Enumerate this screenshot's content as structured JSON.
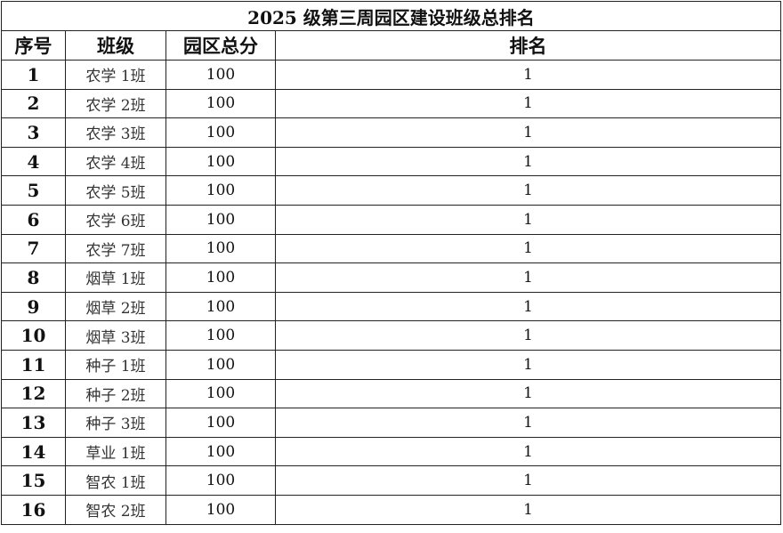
{
  "title": "2025 级第三周园区建设班级总排名",
  "headers": [
    "序号",
    "班级",
    "园区总分",
    "排名"
  ],
  "rows": [
    [
      "1",
      "农学 1班",
      "100",
      "1"
    ],
    [
      "2",
      "农学 2班",
      "100",
      "1"
    ],
    [
      "3",
      "农学 3班",
      "100",
      "1"
    ],
    [
      "4",
      "农学 4班",
      "100",
      "1"
    ],
    [
      "5",
      "农学 5班",
      "100",
      "1"
    ],
    [
      "6",
      "农学 6班",
      "100",
      "1"
    ],
    [
      "7",
      "农学 7班",
      "100",
      "1"
    ],
    [
      "8",
      "烟草 1班",
      "100",
      "1"
    ],
    [
      "9",
      "烟草 2班",
      "100",
      "1"
    ],
    [
      "10",
      "烟草 3班",
      "100",
      "1"
    ],
    [
      "11",
      "种子 1班",
      "100",
      "1"
    ],
    [
      "12",
      "种子 2班",
      "100",
      "1"
    ],
    [
      "13",
      "种子 3班",
      "100",
      "1"
    ],
    [
      "14",
      "草业 1班",
      "100",
      "1"
    ],
    [
      "15",
      "智农 1班",
      "100",
      "1"
    ],
    [
      "16",
      "智农 2班",
      "100",
      "1"
    ]
  ]
}
